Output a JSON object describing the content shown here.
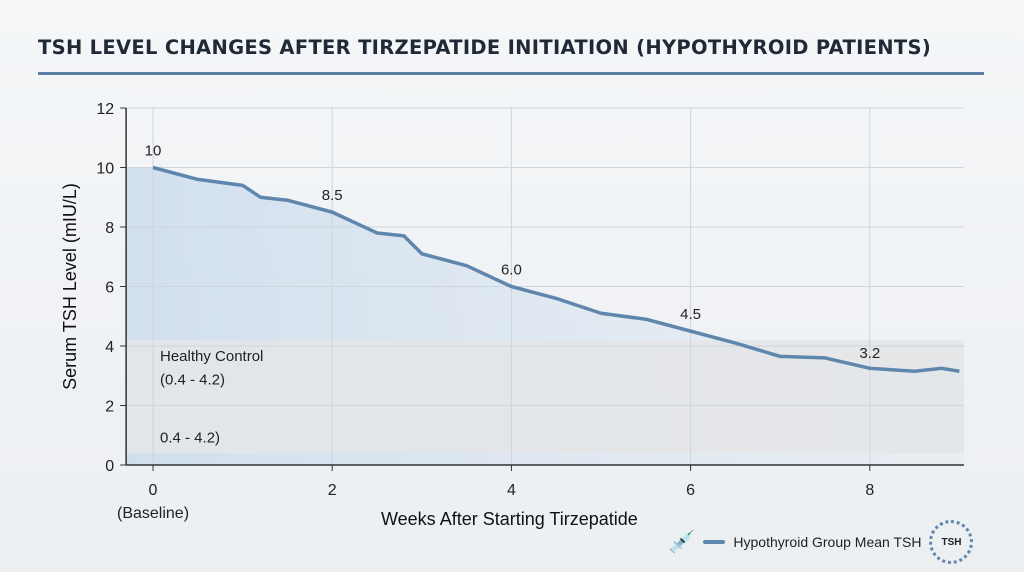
{
  "title": "TSH LEVEL CHANGES AFTER TIRZEPATIDE INITIATION (HYPOTHYROID PATIENTS)",
  "chart_data": {
    "type": "line",
    "title": "TSH LEVEL CHANGES AFTER TIRZEPATIDE INITIATION (HYPOTHYROID PATIENTS)",
    "xlabel": "Weeks After Starting Tirzepatide",
    "ylabel": "Serum TSH Level (mIU/L)",
    "xlim": [
      -0.3,
      9.05
    ],
    "ylim": [
      0,
      12
    ],
    "xticks": [
      0,
      2,
      4,
      6,
      8
    ],
    "xtick_sublabels": {
      "0": "(Baseline)"
    },
    "yticks": [
      0,
      2,
      4,
      6,
      8,
      10,
      12
    ],
    "grid": true,
    "legend": "bottom-right",
    "series": [
      {
        "name": "Hypothyroid Group Mean TSH",
        "color": "#5f86ad",
        "x": [
          0,
          0.5,
          1,
          1.2,
          1.5,
          2,
          2.5,
          2.8,
          3,
          3.5,
          4,
          4.5,
          5,
          5.5,
          6,
          6.5,
          7,
          7.5,
          8,
          8.5,
          8.8,
          9
        ],
        "y": [
          10,
          9.6,
          9.4,
          9.0,
          8.9,
          8.5,
          7.8,
          7.7,
          7.1,
          6.7,
          6.0,
          5.6,
          5.1,
          4.9,
          4.5,
          4.1,
          3.65,
          3.6,
          3.25,
          3.15,
          3.25,
          3.15
        ]
      }
    ],
    "data_labels": [
      {
        "x": 0,
        "y": 10,
        "text": "10"
      },
      {
        "x": 2,
        "y": 8.5,
        "text": "8.5"
      },
      {
        "x": 4,
        "y": 6.0,
        "text": "6.0"
      },
      {
        "x": 6,
        "y": 4.5,
        "text": "4.5"
      },
      {
        "x": 8,
        "y": 3.2,
        "text": "3.2"
      }
    ],
    "reference_band": {
      "low": 0.4,
      "high": 4.2,
      "label": "Healthy Control",
      "range_text": "(0.4 - 4.2)",
      "range_text2": "0.4 - 4.2)",
      "color": "#e3e5e8"
    }
  },
  "legend_badge": "TSH"
}
